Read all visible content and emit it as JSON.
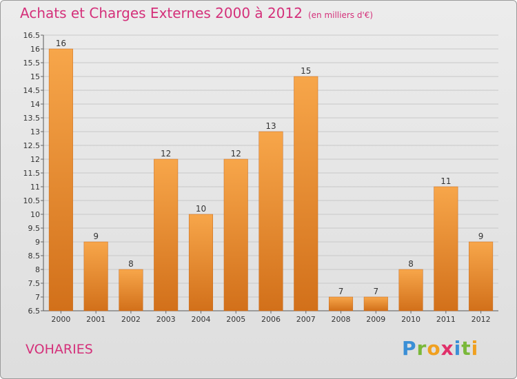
{
  "header": {
    "title": "Achats et Charges Externes 2000 à 2012",
    "subtitle": "(en milliers d'€)"
  },
  "place": "VOHARIES",
  "logo": {
    "letters": [
      "P",
      "r",
      "o",
      "x",
      "i",
      "t",
      "i"
    ],
    "colors": [
      "#3a8fd6",
      "#7ab83a",
      "#f0a020",
      "#e0306a",
      "#3a8fd6",
      "#7ab83a",
      "#f0a020"
    ]
  },
  "colors": {
    "bar_top": "#f7a64a",
    "bar_bottom": "#d2701a",
    "grid": "#c8c8c8",
    "title": "#d4307a"
  },
  "chart_data": {
    "type": "bar",
    "title": "Achats et Charges Externes 2000 à 2012",
    "xlabel": "",
    "ylabel": "",
    "categories": [
      "2000",
      "2001",
      "2002",
      "2003",
      "2004",
      "2005",
      "2006",
      "2007",
      "2008",
      "2009",
      "2010",
      "2011",
      "2012"
    ],
    "values": [
      16,
      9,
      8,
      12,
      10,
      12,
      13,
      15,
      7,
      7,
      8,
      11,
      9
    ],
    "ylim": [
      6.5,
      16.5
    ],
    "yticks": [
      "6.5",
      "7",
      "7.5",
      "8",
      "8.5",
      "9",
      "9.5",
      "10",
      "10.5",
      "11",
      "11.5",
      "12",
      "12.5",
      "13",
      "13.5",
      "14",
      "14.5",
      "15",
      "15.5",
      "16",
      "16.5"
    ],
    "grid": true,
    "legend": "none"
  }
}
